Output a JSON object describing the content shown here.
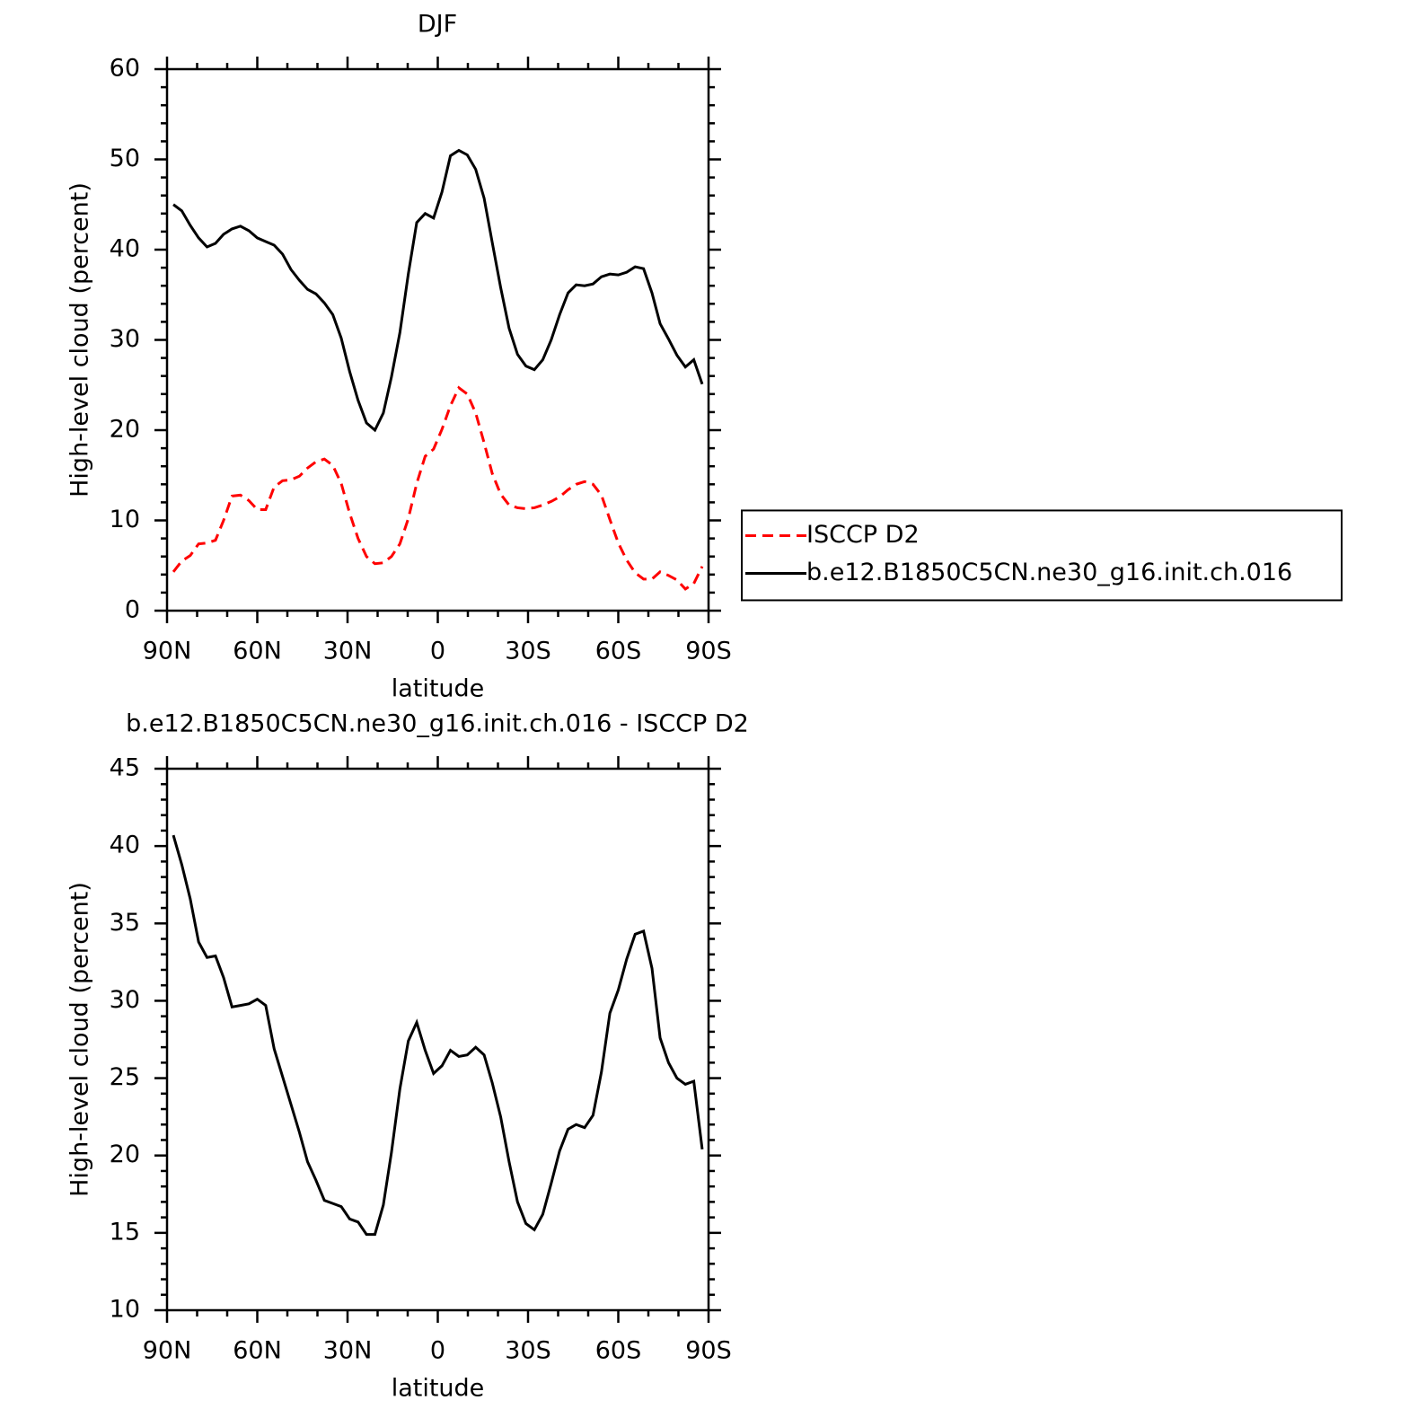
{
  "chart_data": [
    {
      "type": "line",
      "title": "DJF",
      "xlabel": "latitude",
      "ylabel": "High-level cloud (percent)",
      "x": [
        87.9,
        85.1,
        82.3,
        79.5,
        76.7,
        73.9,
        71.2,
        68.4,
        65.6,
        62.8,
        60.0,
        57.2,
        54.4,
        51.6,
        48.8,
        46.0,
        43.3,
        40.5,
        37.7,
        34.9,
        32.1,
        29.3,
        26.5,
        23.7,
        20.9,
        18.1,
        15.4,
        12.6,
        9.8,
        7.0,
        4.2,
        1.4,
        -1.4,
        -4.2,
        -7.0,
        -9.8,
        -12.6,
        -15.4,
        -18.1,
        -20.9,
        -23.7,
        -26.5,
        -29.3,
        -32.1,
        -34.9,
        -37.7,
        -40.5,
        -43.3,
        -46.0,
        -48.8,
        -51.6,
        -54.4,
        -57.2,
        -60.0,
        -62.8,
        -65.6,
        -68.4,
        -71.2,
        -73.9,
        -76.7,
        -79.5,
        -82.3,
        -85.1,
        -87.9
      ],
      "series": [
        {
          "name": "ISCCP D2",
          "color": "#ff0000",
          "linestyle": "dashed",
          "values": [
            4.3,
            5.5,
            6.1,
            7.4,
            7.5,
            7.8,
            10.0,
            12.7,
            12.8,
            12.2,
            11.2,
            11.2,
            13.7,
            14.4,
            14.5,
            14.9,
            15.8,
            16.5,
            16.8,
            16.1,
            14.1,
            10.8,
            8.0,
            6.0,
            5.2,
            5.3,
            6.0,
            7.4,
            10.2,
            14.1,
            17.1,
            17.9,
            20.1,
            22.7,
            24.7,
            24.0,
            21.9,
            18.6,
            15.2,
            12.9,
            11.7,
            11.4,
            11.3,
            11.4,
            11.7,
            12.1,
            12.6,
            13.4,
            14.0,
            14.3,
            14.0,
            12.8,
            10.1,
            7.5,
            5.6,
            4.2,
            3.5,
            3.5,
            4.3,
            3.9,
            3.4,
            2.4,
            3.0,
            4.9
          ]
        },
        {
          "name": "b.e12.B1850C5CN.ne30_g16.init.ch.016",
          "color": "#000000",
          "linestyle": "solid",
          "values": [
            45.0,
            44.3,
            42.7,
            41.3,
            40.3,
            40.7,
            41.7,
            42.3,
            42.6,
            42.1,
            41.3,
            40.9,
            40.5,
            39.5,
            37.8,
            36.6,
            35.6,
            35.1,
            34.1,
            32.8,
            30.2,
            26.5,
            23.3,
            20.8,
            20.0,
            21.9,
            25.9,
            30.8,
            37.3,
            43.0,
            44.0,
            43.5,
            46.4,
            50.4,
            51.0,
            50.5,
            48.9,
            45.7,
            40.8,
            35.8,
            31.3,
            28.4,
            27.1,
            26.7,
            27.8,
            30.0,
            32.8,
            35.2,
            36.1,
            36.0,
            36.2,
            37.0,
            37.3,
            37.2,
            37.5,
            38.1,
            37.9,
            35.2,
            31.8,
            30.1,
            28.3,
            27.0,
            27.8,
            25.1
          ]
        }
      ],
      "xlim": [
        90,
        -90
      ],
      "xticks": [
        {
          "value": 90,
          "label": "90N"
        },
        {
          "value": 60,
          "label": "60N"
        },
        {
          "value": 30,
          "label": "30N"
        },
        0,
        {
          "value": -30,
          "label": "30S"
        },
        {
          "value": -60,
          "label": "60S"
        },
        {
          "value": -90,
          "label": "90S"
        }
      ],
      "ylim": [
        0,
        60
      ],
      "yticks": [
        0,
        10,
        20,
        30,
        40,
        50,
        60
      ],
      "legend": "right"
    },
    {
      "type": "line",
      "title": "b.e12.B1850C5CN.ne30_g16.init.ch.016 - ISCCP D2",
      "xlabel": "latitude",
      "ylabel": "High-level cloud (percent)",
      "x": [
        87.9,
        85.1,
        82.3,
        79.5,
        76.7,
        73.9,
        71.2,
        68.4,
        65.6,
        62.8,
        60.0,
        57.2,
        54.4,
        51.6,
        48.8,
        46.0,
        43.3,
        40.5,
        37.7,
        34.9,
        32.1,
        29.3,
        26.5,
        23.7,
        20.9,
        18.1,
        15.4,
        12.6,
        9.8,
        7.0,
        4.2,
        1.4,
        -1.4,
        -4.2,
        -7.0,
        -9.8,
        -12.6,
        -15.4,
        -18.1,
        -20.9,
        -23.7,
        -26.5,
        -29.3,
        -32.1,
        -34.9,
        -37.7,
        -40.5,
        -43.3,
        -46.0,
        -48.8,
        -51.6,
        -54.4,
        -57.2,
        -60.0,
        -62.8,
        -65.6,
        -68.4,
        -71.2,
        -73.9,
        -76.7,
        -79.5,
        -82.3,
        -85.1,
        -87.9
      ],
      "values": [
        40.7,
        38.8,
        36.6,
        33.8,
        32.8,
        32.9,
        31.5,
        29.6,
        29.7,
        29.8,
        30.1,
        29.7,
        26.9,
        25.1,
        23.3,
        21.5,
        19.6,
        18.4,
        17.1,
        16.9,
        16.7,
        15.9,
        15.7,
        14.9,
        14.9,
        16.8,
        20.2,
        24.3,
        27.4,
        28.6,
        26.8,
        25.3,
        25.8,
        26.8,
        26.4,
        26.5,
        27.0,
        26.5,
        24.7,
        22.5,
        19.6,
        17.0,
        15.6,
        15.2,
        16.2,
        18.2,
        20.3,
        21.7,
        22.0,
        21.8,
        22.6,
        25.4,
        29.2,
        30.7,
        32.7,
        34.3,
        34.5,
        32.1,
        27.6,
        26.0,
        25.0,
        24.6,
        24.8,
        20.4
      ],
      "color": "#000000",
      "xlim": [
        90,
        -90
      ],
      "xticks": [
        {
          "value": 90,
          "label": "90N"
        },
        {
          "value": 60,
          "label": "60N"
        },
        {
          "value": 30,
          "label": "30N"
        },
        0,
        {
          "value": -30,
          "label": "30S"
        },
        {
          "value": -60,
          "label": "60S"
        },
        {
          "value": -90,
          "label": "90S"
        }
      ],
      "ylim": [
        10,
        45
      ],
      "yticks": [
        10,
        15,
        20,
        25,
        30,
        35,
        40,
        45
      ]
    }
  ]
}
